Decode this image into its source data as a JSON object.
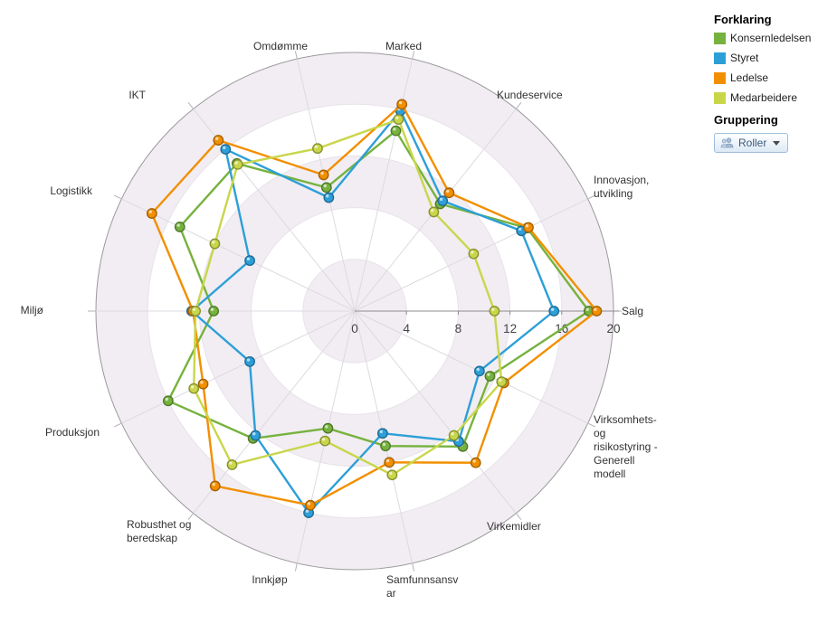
{
  "legend": {
    "title": "Forklaring",
    "items": [
      {
        "label": "Konsernledelsen",
        "color": "#76b23e"
      },
      {
        "label": "Styret",
        "color": "#2d9fd8"
      },
      {
        "label": "Ledelse",
        "color": "#f28f00"
      },
      {
        "label": "Medarbeidere",
        "color": "#c9d64a"
      }
    ],
    "grouping_title": "Gruppering",
    "grouping_button": {
      "label": "Roller",
      "icon": "people-icon"
    }
  },
  "chart_data": {
    "type": "radar",
    "axis": {
      "min": 0,
      "max": 20,
      "ticks": [
        0,
        4,
        8,
        12,
        16,
        20
      ]
    },
    "grid": {
      "bands": true,
      "band_color": "#f1edf2",
      "outer_ring_color": "#9a9a9a"
    },
    "categories": [
      {
        "label_lines": [
          "Salg"
        ]
      },
      {
        "label_lines": [
          "Innovasjon,",
          "utvikling"
        ]
      },
      {
        "label_lines": [
          "Kundeservice"
        ]
      },
      {
        "label_lines": [
          "Marked"
        ]
      },
      {
        "label_lines": [
          "Omdømme"
        ]
      },
      {
        "label_lines": [
          "IKT"
        ]
      },
      {
        "label_lines": [
          "Logistikk"
        ]
      },
      {
        "label_lines": [
          "Miljø"
        ]
      },
      {
        "label_lines": [
          "Produksjon"
        ]
      },
      {
        "label_lines": [
          "Robusthet og",
          "beredskap"
        ]
      },
      {
        "label_lines": [
          "Innkjøp"
        ]
      },
      {
        "label_lines": [
          "Samfunnsansv",
          "ar"
        ]
      },
      {
        "label_lines": [
          "Virkemidler"
        ]
      },
      {
        "label_lines": [
          "Virksomhets-",
          "og",
          "risikostyring -",
          "Generell",
          "modell"
        ]
      }
    ],
    "series": [
      {
        "name": "Konsernledelsen",
        "color": "#76b23e",
        "values": [
          18.1,
          14.8,
          10.6,
          14.3,
          9.8,
          14.6,
          15.0,
          10.9,
          16.0,
          12.6,
          9.3,
          10.7,
          13.4,
          11.6
        ]
      },
      {
        "name": "Styret",
        "color": "#2d9fd8",
        "values": [
          15.4,
          14.3,
          10.9,
          15.9,
          9.0,
          16.0,
          9.0,
          12.6,
          9.0,
          12.3,
          16.0,
          9.7,
          12.9,
          10.7
        ]
      },
      {
        "name": "Ledelse",
        "color": "#f28f00",
        "values": [
          18.7,
          14.9,
          11.7,
          16.4,
          10.8,
          16.9,
          17.4,
          12.5,
          13.0,
          17.3,
          15.4,
          12.0,
          15.0,
          12.8
        ]
      },
      {
        "name": "Medarbeidere",
        "color": "#c9d64a",
        "values": [
          10.8,
          10.2,
          9.8,
          15.2,
          12.9,
          14.5,
          12.0,
          12.3,
          13.8,
          15.2,
          10.3,
          13.0,
          12.3,
          12.6
        ]
      }
    ]
  }
}
